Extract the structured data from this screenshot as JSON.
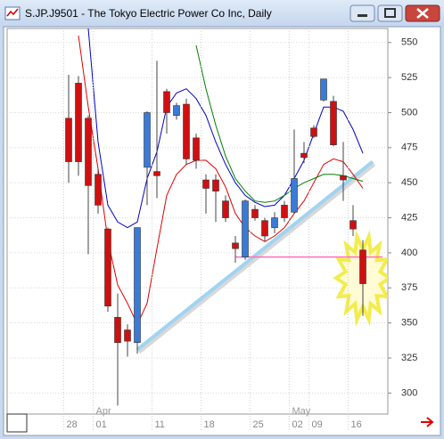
{
  "window_title": "S.JP.J9501 - The Tokyo Electric Power Co Inc, Daily",
  "chart_data": {
    "type": "candlestick",
    "categories": [
      "28",
      null,
      null,
      "01",
      null,
      null,
      null,
      null,
      null,
      "11",
      null,
      null,
      null,
      null,
      "18",
      null,
      null,
      null,
      null,
      "25",
      null,
      null,
      null,
      "02",
      null,
      "09",
      null,
      null,
      null,
      "16",
      null
    ],
    "months": [
      null,
      null,
      null,
      "Apr",
      null,
      null,
      null,
      null,
      null,
      null,
      null,
      null,
      null,
      null,
      null,
      null,
      null,
      null,
      null,
      null,
      null,
      null,
      null,
      "May",
      null,
      null,
      null,
      null,
      null,
      null,
      null
    ],
    "open": [
      496,
      521,
      496,
      456,
      417,
      354,
      345,
      336,
      461,
      458,
      515,
      498,
      506,
      482,
      452,
      452,
      437,
      407,
      397,
      431,
      423,
      418,
      434,
      429,
      471,
      489,
      509,
      508,
      455,
      423,
      402
    ],
    "high": [
      527,
      526,
      498,
      460,
      418,
      371,
      349,
      418,
      501,
      537,
      517,
      507,
      510,
      485,
      456,
      456,
      441,
      412,
      438,
      434,
      425,
      429,
      437,
      488,
      479,
      491,
      524,
      512,
      479,
      434,
      409
    ],
    "low": [
      450,
      455,
      399,
      428,
      358,
      291,
      326,
      328,
      434,
      439,
      485,
      495,
      463,
      460,
      428,
      422,
      422,
      393,
      395,
      423,
      408,
      414,
      422,
      428,
      464,
      482,
      508,
      476,
      437,
      412,
      355
    ],
    "close": [
      465,
      465,
      448,
      434,
      362,
      336,
      337,
      418,
      500,
      455,
      500,
      505,
      467,
      466,
      446,
      444,
      425,
      403,
      437,
      425,
      412,
      425,
      425,
      453,
      468,
      483,
      524,
      477,
      452,
      417,
      378
    ],
    "up_color": "#3a7ad8",
    "down_color": "#d01010",
    "moving_averages": [
      {
        "color": "#e00000",
        "values": [
          null,
          555,
          504,
          460,
          409,
          377,
          364,
          349,
          364,
          403,
          441,
          456,
          463,
          466,
          466,
          460,
          447,
          428,
          418,
          412,
          408,
          412,
          418,
          428,
          437,
          450,
          463,
          467,
          465,
          456,
          446
        ]
      },
      {
        "color": "#0000c8",
        "values": [
          null,
          null,
          560,
          479,
          434,
          422,
          418,
          422,
          453,
          472,
          504,
          514,
          517,
          510,
          498,
          479,
          463,
          450,
          441,
          436,
          433,
          434,
          441,
          453,
          466,
          485,
          504,
          504,
          501,
          488,
          471
        ]
      },
      {
        "color": "#008000",
        "values": [
          null,
          null,
          null,
          null,
          null,
          null,
          null,
          null,
          null,
          null,
          null,
          null,
          null,
          548,
          517,
          491,
          469,
          453,
          444,
          437,
          436,
          437,
          441,
          446,
          450,
          453,
          456,
          456,
          455,
          453,
          451
        ]
      }
    ],
    "trendline": {
      "x": [
        7,
        31
      ],
      "values": [
        331,
        465
      ],
      "color": "#9fd4f2"
    },
    "hline": {
      "x": [
        17,
        32
      ],
      "value": 397,
      "color": "#ff70b8"
    },
    "ylim": [
      285,
      560
    ],
    "yticks": [
      300,
      325,
      350,
      375,
      400,
      425,
      450,
      475,
      500,
      525,
      550
    ],
    "grid": true
  }
}
